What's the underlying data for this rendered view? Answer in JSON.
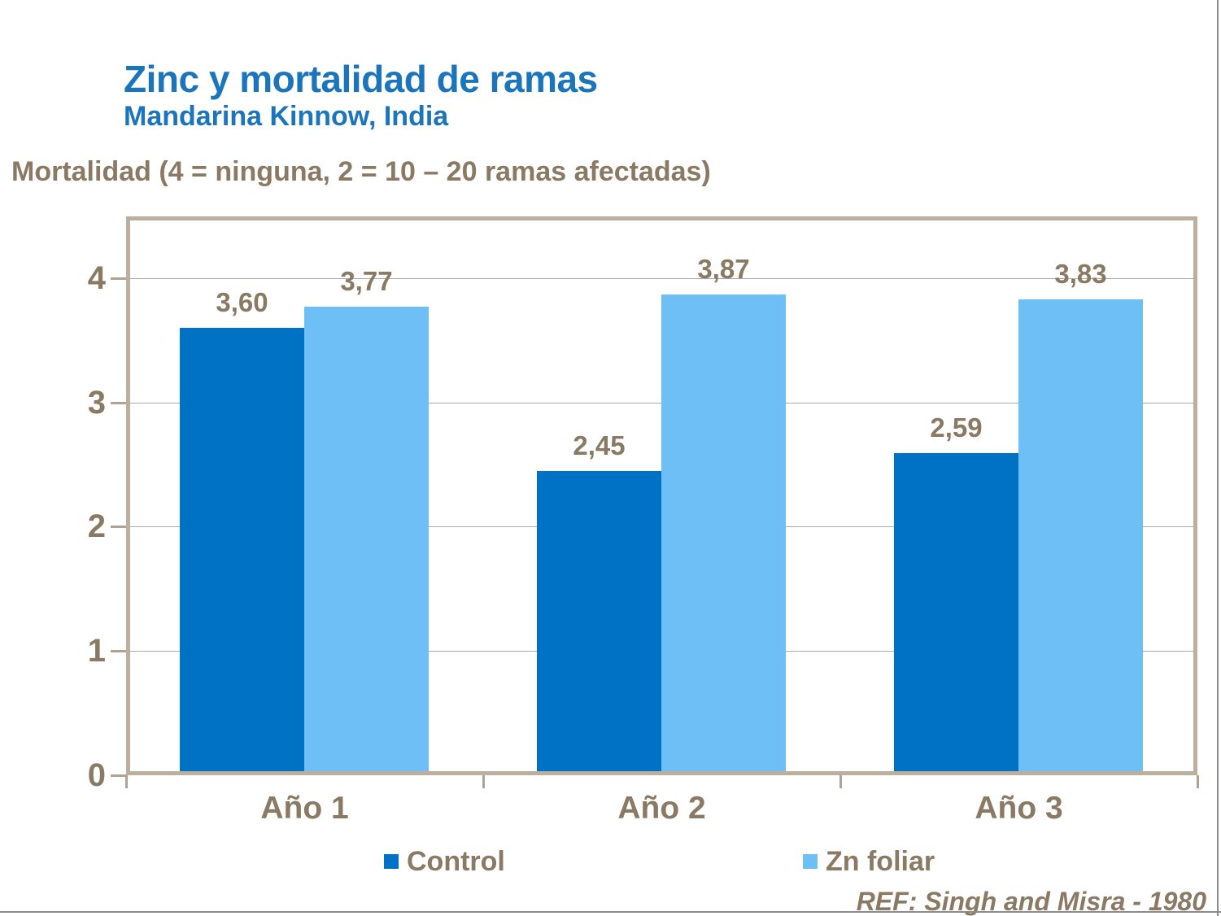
{
  "slide": {
    "title": "Zinc y mortalidad de ramas",
    "subtitle": "Mandarina Kinnow, India",
    "axis_note": "Mortalidad (4 = ninguna, 2 = 10 – 20 ramas afectadas)",
    "reference": "REF: Singh and Misra - 1980"
  },
  "colors": {
    "title_blue": "#1B75BC",
    "text_brown": "#8A7963",
    "plot_border_tan": "#BCAFA0",
    "gridline_gray": "#A8A8A8",
    "edge_line_gray": "#8C8C8C",
    "control_blue": "#0072C6",
    "zn_foliar_blue": "#6FBFF7"
  },
  "chart_data": {
    "type": "bar",
    "title": "Zinc y mortalidad de ramas",
    "subtitle": "Mandarina Kinnow, India",
    "ylabel": "Mortalidad (4 = ninguna, 2 = 10 – 20 ramas afectadas)",
    "categories": [
      "Año 1",
      "Año 2",
      "Año 3"
    ],
    "series": [
      {
        "name": "Control",
        "color": "#0072C6",
        "values": [
          3.6,
          2.45,
          2.59
        ],
        "value_labels": [
          "3,60",
          "2,45",
          "2,59"
        ]
      },
      {
        "name": "Zn foliar",
        "color": "#6FBFF7",
        "values": [
          3.77,
          3.87,
          3.83
        ],
        "value_labels": [
          "3,77",
          "3,87",
          "3,83"
        ]
      }
    ],
    "ylim": [
      0,
      4.5
    ],
    "yticks": [
      0,
      1,
      2,
      3,
      4
    ],
    "grid": "horizontal",
    "legend_position": "bottom"
  }
}
